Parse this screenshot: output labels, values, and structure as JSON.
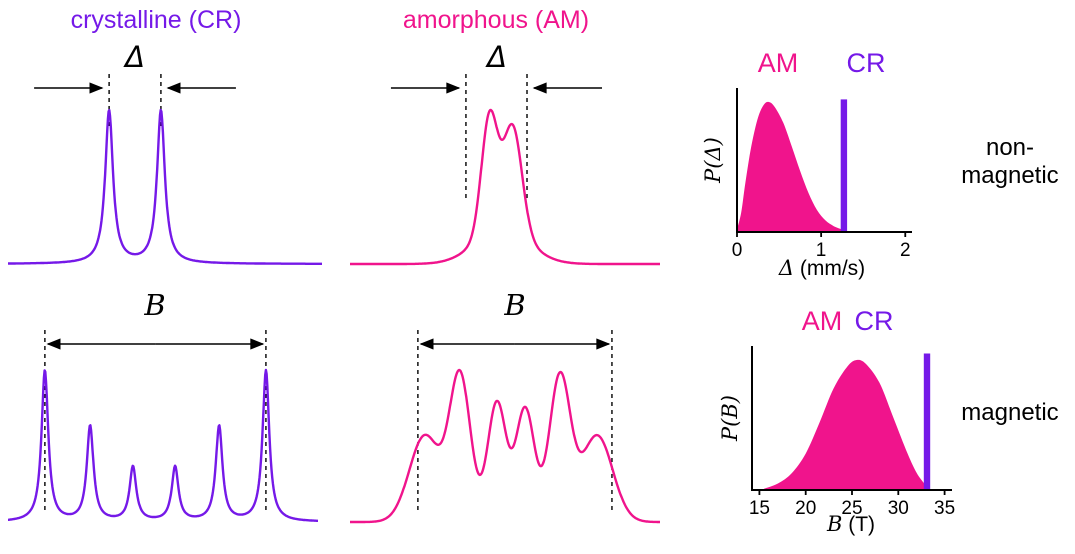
{
  "colors": {
    "cr": "#7519E8",
    "am": "#F0148C",
    "axis": "#000000"
  },
  "rows": {
    "top": "non-magnetic",
    "bottom": "magnetic"
  },
  "panels": {
    "cr_doublet": {
      "title": "crystalline (CR)",
      "symbol": "Δ"
    },
    "am_doublet": {
      "title": "amorphous (AM)",
      "symbol": "Δ"
    },
    "cr_sextet": {
      "symbol": "B"
    },
    "am_sextet": {
      "symbol": "B"
    },
    "p_delta": {
      "legend_am": "AM",
      "legend_cr": "CR",
      "ylabel": "P(Δ)",
      "xlabel_symbol": "Δ",
      "xlabel_unit": "(mm/s)"
    },
    "p_b": {
      "legend_am": "AM",
      "legend_cr": "CR",
      "ylabel": "P(B)",
      "xlabel_symbol": "B",
      "xlabel_unit": "(T)"
    }
  },
  "chart_data": [
    {
      "id": "cr_doublet",
      "type": "line",
      "title": "crystalline (CR)",
      "description": "sharp quadrupole doublet spectrum, splitting Δ marked by dashed lines and inward arrows",
      "shape": "lorentzian",
      "color": "cr",
      "peaks": [
        {
          "center": 0.322,
          "height": 1.0,
          "width": 0.015
        },
        {
          "center": 0.487,
          "height": 1.0,
          "width": 0.015
        }
      ]
    },
    {
      "id": "am_doublet",
      "type": "line",
      "title": "amorphous (AM)",
      "description": "broadened merged doublet spectrum, width Δ marked by dashed lines and inward arrows",
      "shape": "gaussian",
      "color": "am",
      "peaks": [
        {
          "center": 0.45,
          "height": 1.0,
          "width": 0.026
        },
        {
          "center": 0.525,
          "height": 0.9,
          "width": 0.03
        },
        {
          "center": 0.49,
          "height": 0.3,
          "width": 0.085
        }
      ]
    },
    {
      "id": "cr_sextet",
      "type": "line",
      "title": "crystalline magnetic sextet",
      "description": "six sharp lines, outer splitting B marked by dashed lines and double-headed arrow",
      "shape": "lorentzian",
      "color": "cr",
      "peaks": [
        {
          "center": 0.119,
          "height": 1.0,
          "width": 0.013
        },
        {
          "center": 0.265,
          "height": 0.63,
          "width": 0.013
        },
        {
          "center": 0.403,
          "height": 0.36,
          "width": 0.013
        },
        {
          "center": 0.539,
          "height": 0.36,
          "width": 0.013
        },
        {
          "center": 0.681,
          "height": 0.63,
          "width": 0.013
        },
        {
          "center": 0.832,
          "height": 1.0,
          "width": 0.013
        }
      ]
    },
    {
      "id": "am_sextet",
      "type": "line",
      "title": "amorphous magnetic sextet",
      "description": "broad overlapping six-line pattern, width B marked by dashed lines and double-headed arrow",
      "shape": "gaussian",
      "color": "am",
      "peaks": [
        {
          "center": 0.242,
          "height": 0.55,
          "width": 0.05
        },
        {
          "center": 0.355,
          "height": 0.92,
          "width": 0.034
        },
        {
          "center": 0.474,
          "height": 0.76,
          "width": 0.03
        },
        {
          "center": 0.565,
          "height": 0.72,
          "width": 0.03
        },
        {
          "center": 0.677,
          "height": 0.92,
          "width": 0.034
        },
        {
          "center": 0.797,
          "height": 0.55,
          "width": 0.05
        }
      ]
    },
    {
      "id": "p_delta",
      "type": "area",
      "title": "non-magnetic",
      "ylabel": "P(Δ)",
      "xlabel": "Δ (mm/s)",
      "xlim": [
        0,
        2.08
      ],
      "ticks": [
        0,
        1,
        2
      ],
      "legend": [
        "AM",
        "CR"
      ],
      "am_distribution": {
        "x": [
          0,
          0.05,
          0.1,
          0.17,
          0.25,
          0.32,
          0.38,
          0.45,
          0.55,
          0.65,
          0.75,
          0.85,
          0.95,
          1.05,
          1.15,
          1.25
        ],
        "y": [
          0.02,
          0.15,
          0.38,
          0.66,
          0.88,
          0.98,
          1.0,
          0.96,
          0.84,
          0.66,
          0.47,
          0.3,
          0.17,
          0.09,
          0.045,
          0.02
        ]
      },
      "cr_line": {
        "x": 1.27,
        "height": 1.02
      }
    },
    {
      "id": "p_b",
      "type": "area",
      "title": "magnetic",
      "ylabel": "P(B)",
      "xlabel": "B (T)",
      "xlim": [
        14.2,
        35.8
      ],
      "ticks": [
        15,
        20,
        25,
        30,
        35
      ],
      "legend": [
        "AM",
        "CR"
      ],
      "am_distribution": {
        "x": [
          15.5,
          17,
          18.5,
          20,
          21.5,
          23,
          24.5,
          25.5,
          26.5,
          28,
          29.5,
          31,
          32,
          32.8
        ],
        "y": [
          0.01,
          0.05,
          0.13,
          0.28,
          0.52,
          0.78,
          0.95,
          1.0,
          0.97,
          0.82,
          0.55,
          0.28,
          0.13,
          0.05
        ]
      },
      "cr_line": {
        "x": 33.1,
        "height": 1.05
      }
    }
  ]
}
